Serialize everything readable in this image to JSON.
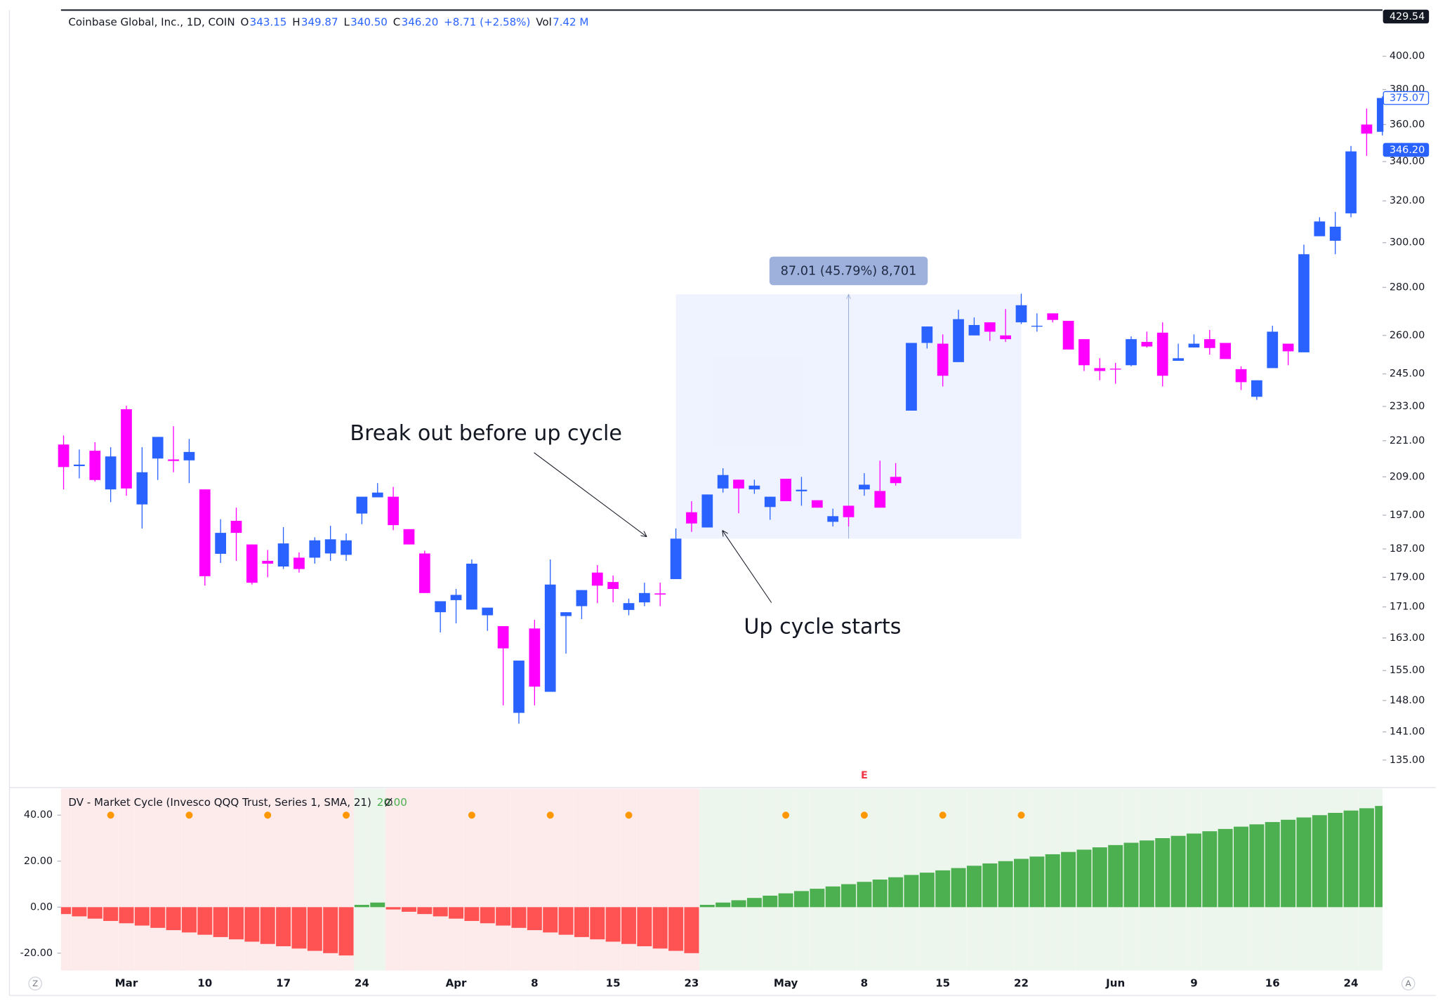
{
  "chart_data": [
    {
      "type": "candlestick",
      "title": "Coinbase Global, Inc., 1D, COIN",
      "header": [
        {
          "key": "O",
          "value": "343.15"
        },
        {
          "key": "H",
          "value": "349.87"
        },
        {
          "key": "L",
          "value": "340.50"
        },
        {
          "key": "C",
          "value": "346.20"
        }
      ],
      "change": "+8.71 (+2.58%)",
      "volume": {
        "key": "Vol",
        "value": "7.42 M"
      },
      "categories": [
        null,
        null,
        null,
        null,
        "Mar",
        null,
        null,
        null,
        null,
        "10",
        null,
        null,
        null,
        null,
        "17",
        null,
        null,
        null,
        null,
        "24",
        null,
        null,
        null,
        null,
        null,
        "Apr",
        null,
        null,
        null,
        null,
        "8",
        null,
        null,
        null,
        null,
        "15",
        null,
        null,
        null,
        null,
        "23",
        null,
        null,
        null,
        null,
        null,
        "May",
        null,
        null,
        null,
        null,
        "8",
        null,
        null,
        null,
        null,
        "15",
        null,
        null,
        null,
        null,
        "22",
        null,
        null,
        null,
        null,
        null,
        "Jun",
        null,
        null,
        null,
        null,
        "9",
        null,
        null,
        null,
        null,
        "16",
        null,
        null,
        null,
        null,
        "24",
        null,
        null
      ],
      "open": [
        219.7,
        212.5,
        217.6,
        205,
        232,
        200.3,
        215,
        214.7,
        214.4,
        205,
        185.6,
        195.3,
        188.3,
        183.6,
        182,
        184.5,
        184.5,
        185.7,
        185.3,
        197.5,
        202.5,
        202.7,
        192.8,
        185.7,
        169.6,
        172.8,
        170.3,
        168.8,
        166,
        145.2,
        165.4,
        150,
        168.6,
        171.2,
        180.3,
        177.7,
        170.2,
        172.2,
        174.6,
        178.5,
        197.9,
        193.3,
        205.3,
        208.1,
        205,
        199.5,
        208.4,
        204.4,
        201.6,
        195,
        199.9,
        205,
        204.5,
        209,
        231.5,
        257,
        256.7,
        249.5,
        260,
        265.3,
        260,
        265.3,
        263.6,
        269,
        265.9,
        258.5,
        247.2,
        247,
        248.3,
        257.4,
        261.1,
        250,
        255.2,
        258.5,
        257,
        246.8,
        236.5,
        247.2,
        256.7,
        253.3,
        303,
        300.9,
        313.9,
        360,
        356
      ],
      "high": [
        222.8,
        218,
        220.5,
        218.8,
        233.3,
        218.8,
        222.3,
        226,
        221.6,
        205,
        195.8,
        199.3,
        188.3,
        186.7,
        193.4,
        186,
        190.4,
        193.8,
        191.5,
        202.7,
        207,
        205.8,
        192.8,
        186.5,
        172.5,
        175.8,
        184,
        170.8,
        166,
        157.4,
        167.6,
        184,
        169.6,
        175.5,
        182.4,
        179.5,
        173.2,
        177.5,
        177.5,
        193,
        201.3,
        203.4,
        211.8,
        208.1,
        208.1,
        202.7,
        208.4,
        209,
        201.6,
        199,
        199.9,
        210.2,
        214.3,
        213.5,
        257,
        263.6,
        260.4,
        270.5,
        267.3,
        265.3,
        270.8,
        277.3,
        269,
        269,
        265.9,
        258.5,
        251,
        249.2,
        259.6,
        261.5,
        265.3,
        256.7,
        260.4,
        262.2,
        257,
        247.9,
        242.6,
        263.9,
        256.7,
        299.1,
        312,
        314.6,
        348.3,
        369,
        376
      ],
      "low": [
        205,
        208.5,
        207.5,
        201,
        203,
        193,
        208,
        210.5,
        207,
        176.7,
        183,
        183.6,
        177,
        179,
        181.3,
        180.3,
        182.8,
        183.6,
        183.6,
        194.3,
        202.5,
        192.5,
        188.3,
        174.7,
        164.4,
        166.7,
        170.3,
        164.8,
        146.9,
        142.8,
        146.9,
        150,
        159.1,
        167.8,
        172,
        172.2,
        168.8,
        171.2,
        171.2,
        178.5,
        192,
        193.3,
        204,
        197.6,
        203.6,
        195.6,
        201.3,
        199.9,
        199.3,
        193.6,
        193.6,
        203,
        199.3,
        206.2,
        231.5,
        254.8,
        240.3,
        249.5,
        260,
        257.8,
        257.4,
        264.6,
        261.5,
        265.3,
        254.4,
        246.1,
        242.6,
        241.3,
        247.9,
        255.2,
        240.3,
        250,
        255.2,
        252.4,
        250.7,
        239,
        235.4,
        247.2,
        248.3,
        253.3,
        303,
        294.7,
        312,
        343,
        354
      ],
      "close": [
        212.2,
        213,
        208,
        215.7,
        205.3,
        210.5,
        222.3,
        214.2,
        217.2,
        179.3,
        191.7,
        191.7,
        177.5,
        182.8,
        188.6,
        181.3,
        189.5,
        189.8,
        189.5,
        202.7,
        204,
        194,
        188.3,
        174.7,
        172.5,
        174.2,
        182.8,
        170.8,
        160.4,
        157.4,
        151.2,
        177,
        169.6,
        175.5,
        176.7,
        175.8,
        172,
        174.7,
        174.3,
        190,
        194.5,
        203.4,
        209.6,
        205.3,
        206.2,
        202.7,
        201.3,
        204.9,
        199.3,
        196.7,
        196.4,
        206.5,
        199.3,
        207,
        257,
        263.6,
        244.3,
        266.6,
        264.2,
        261.5,
        258.5,
        272.4,
        263.9,
        266.3,
        254.4,
        248.3,
        246.1,
        246.8,
        258.5,
        255.6,
        244.3,
        251,
        256.7,
        255,
        250.7,
        241.9,
        242.6,
        261.5,
        253.7,
        294.7,
        310,
        307.5,
        345.4,
        355,
        375.07
      ],
      "up_color": "#2962ff",
      "down_color": "#ff00ff",
      "log_scale": true,
      "ylim": [
        130.5,
        429.54
      ],
      "yticks": [
        {
          "value": 400,
          "label": "400.00"
        },
        {
          "value": 380,
          "label": "380.00"
        },
        {
          "value": 360,
          "label": "360.00"
        },
        {
          "value": 340,
          "label": "340.00"
        },
        {
          "value": 320,
          "label": "320.00"
        },
        {
          "value": 300,
          "label": "300.00"
        },
        {
          "value": 280,
          "label": "280.00"
        },
        {
          "value": 260,
          "label": "260.00"
        },
        {
          "value": 245,
          "label": "245.00"
        },
        {
          "value": 233,
          "label": "233.00"
        },
        {
          "value": 221,
          "label": "221.00"
        },
        {
          "value": 209,
          "label": "209.00"
        },
        {
          "value": 197,
          "label": "197.00"
        },
        {
          "value": 187,
          "label": "187.00"
        },
        {
          "value": 179,
          "label": "179.00"
        },
        {
          "value": 171,
          "label": "171.00"
        },
        {
          "value": 163,
          "label": "163.00"
        },
        {
          "value": 155,
          "label": "155.00"
        },
        {
          "value": 148,
          "label": "148.00"
        },
        {
          "value": 141,
          "label": "141.00"
        },
        {
          "value": 135,
          "label": "135.00"
        }
      ],
      "price_labels": [
        {
          "value": 429.54,
          "label": "429.54",
          "color": "#131722",
          "style": "filled"
        },
        {
          "value": 375.07,
          "label": "375.07",
          "color": "#2962ff",
          "style": "outline"
        },
        {
          "value": 346.2,
          "label": "346.20",
          "color": "#2962ff",
          "style": "filled"
        }
      ],
      "measure": {
        "label": "87.01 (45.79%) 8,701",
        "start": 39,
        "end": 61,
        "low": 189.99,
        "high": 277
      },
      "annotations": [
        "Break out before up cycle",
        "Up cycle starts"
      ],
      "earnings": {
        "label": "E",
        "index": 51,
        "color": "#f23645"
      }
    },
    {
      "type": "bar",
      "title": "DV - Market Cycle (Invesco QQQ Trust, Series 1, SMA, 21)",
      "value_label": "20.00",
      "values": [
        -3,
        -4,
        -5,
        -6,
        -7,
        -8,
        -9,
        -10,
        -11,
        -12,
        -13,
        -14,
        -15,
        -16,
        -17,
        -18,
        -19,
        -20,
        -21,
        1,
        2,
        -1,
        -2,
        -3,
        -4,
        -5,
        -6,
        -7,
        -8,
        -9,
        -10,
        -11,
        -12,
        -13,
        -14,
        -15,
        -16,
        -17,
        -18,
        -19,
        -20,
        1,
        2,
        3,
        4,
        5,
        6,
        7,
        8,
        9,
        10,
        11,
        12,
        13,
        14,
        15,
        16,
        17,
        18,
        19,
        20,
        21,
        22,
        23,
        24,
        25,
        26,
        27,
        28,
        29,
        30,
        31,
        32,
        33,
        34,
        35,
        36,
        37,
        38,
        39,
        40,
        41,
        42,
        43,
        44
      ],
      "positive_color": "#4caf50",
      "negative_color": "#ff5252",
      "positive_background": "#edf6ec",
      "negative_background": "#fdebeb",
      "markers": {
        "color": "#ff9800",
        "values": [
          null,
          null,
          null,
          40,
          null,
          null,
          null,
          null,
          40,
          null,
          null,
          null,
          null,
          40,
          null,
          null,
          null,
          null,
          40,
          null,
          null,
          null,
          null,
          null,
          null,
          null,
          40,
          null,
          null,
          null,
          null,
          40,
          null,
          null,
          null,
          null,
          40,
          null,
          null,
          null,
          null,
          null,
          null,
          null,
          null,
          null,
          40,
          null,
          null,
          null,
          null,
          40,
          null,
          null,
          null,
          null,
          40,
          null,
          null,
          null,
          null,
          40,
          null,
          null,
          null,
          null,
          null,
          null,
          null,
          null,
          null,
          null,
          null,
          null,
          null,
          null,
          null,
          null,
          null,
          null,
          null,
          null,
          null,
          null,
          null
        ]
      },
      "ylim": [
        -27.6,
        51.6
      ],
      "yticks": [
        {
          "value": 40,
          "label": "40.00"
        },
        {
          "value": 20,
          "label": "20.00"
        },
        {
          "value": 0,
          "label": "0.00"
        },
        {
          "value": -20,
          "label": "-20.00"
        }
      ]
    }
  ],
  "controls": [
    "Z",
    "A"
  ]
}
